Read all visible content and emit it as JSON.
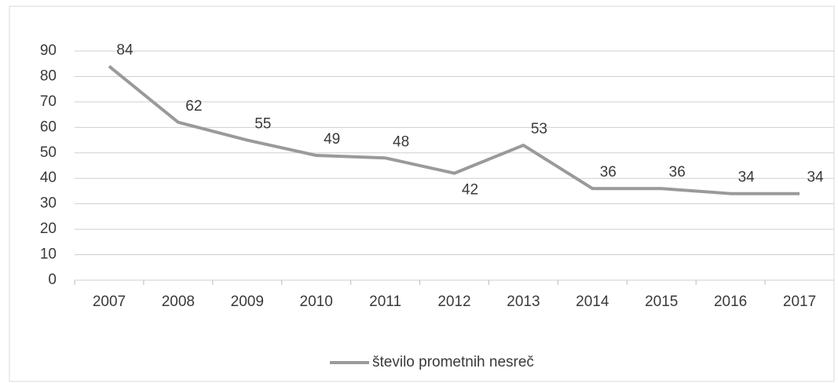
{
  "chart_data": {
    "type": "line",
    "categories": [
      "2007",
      "2008",
      "2009",
      "2010",
      "2011",
      "2012",
      "2013",
      "2014",
      "2015",
      "2016",
      "2017"
    ],
    "series": [
      {
        "name": "število prometnih nesreč",
        "color": "#9a9a9a",
        "values": [
          84,
          62,
          55,
          49,
          48,
          42,
          53,
          36,
          36,
          34,
          34
        ]
      }
    ],
    "ylim": [
      0,
      90
    ],
    "yticks": [
      0,
      10,
      20,
      30,
      40,
      50,
      60,
      70,
      80,
      90
    ],
    "grid": true,
    "legend": "bottom"
  }
}
